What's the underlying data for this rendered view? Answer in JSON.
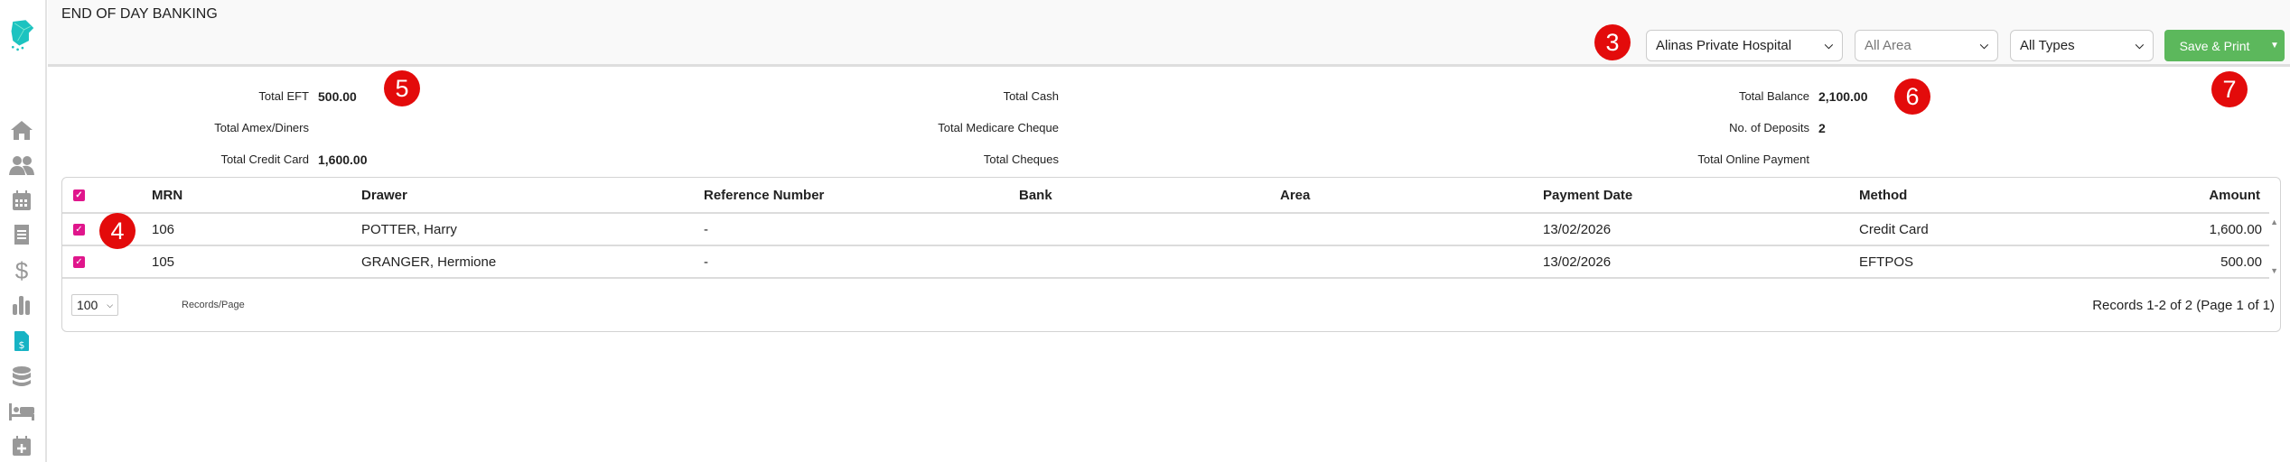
{
  "header": {
    "title": "END OF DAY BANKING"
  },
  "filters": {
    "hospital": "Alinas Private Hospital",
    "area": "All Area",
    "types": "All Types"
  },
  "actions": {
    "save_print": "Save & Print"
  },
  "badges": {
    "b3": "3",
    "b4": "4",
    "b5": "5",
    "b6": "6",
    "b7": "7"
  },
  "summary": {
    "total_eft_label": "Total EFT",
    "total_eft": "500.00",
    "total_amex_label": "Total Amex/Diners",
    "total_credit_label": "Total Credit Card",
    "total_credit": "1,600.00",
    "total_cash_label": "Total Cash",
    "total_medicare_label": "Total Medicare Cheque",
    "total_cheques_label": "Total Cheques",
    "total_balance_label": "Total Balance",
    "total_balance": "2,100.00",
    "deposits_label": "No. of Deposits",
    "deposits": "2",
    "online_label": "Total Online Payment"
  },
  "table": {
    "columns": [
      "MRN",
      "Drawer",
      "Reference Number",
      "Bank",
      "Area",
      "Payment Date",
      "Method",
      "Amount"
    ],
    "rows": [
      {
        "mrn": "106",
        "drawer": "POTTER, Harry",
        "ref": "-",
        "bank": "",
        "area": "",
        "date": "13/02/2026",
        "method": "Credit Card",
        "amount": "1,600.00"
      },
      {
        "mrn": "105",
        "drawer": "GRANGER, Hermione",
        "ref": "-",
        "bank": "",
        "area": "",
        "date": "13/02/2026",
        "method": "EFTPOS",
        "amount": "500.00"
      }
    ],
    "page_size": "100",
    "records_per_page_label": "Records/Page",
    "records_info": "Records 1-2 of 2 (Page 1 of 1)"
  },
  "colors": {
    "accent": "#17b3c4",
    "checkbox": "#e0168c",
    "save": "#5cb85c",
    "badge": "#e30b0b"
  }
}
